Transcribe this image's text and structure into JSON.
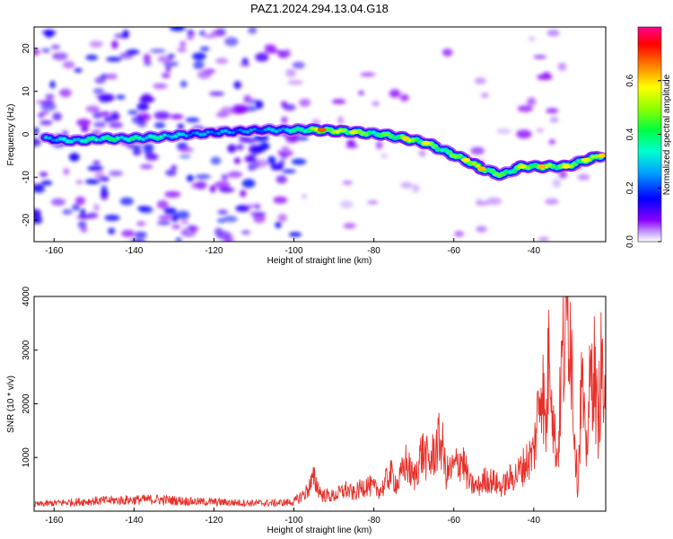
{
  "figure": {
    "title": "PAZ1.2024.294.13.04.G18"
  },
  "chart_data": [
    {
      "type": "heatmap",
      "title": "PAZ1.2024.294.13.04.G18",
      "xlabel": "Height of straight line (km)",
      "ylabel": "Frequency (Hz)",
      "xlim": [
        -165,
        -22
      ],
      "ylim": [
        -25,
        25
      ],
      "x_ticks": [
        -160,
        -140,
        -120,
        -100,
        -80,
        -60,
        -40
      ],
      "y_ticks": [
        -20,
        -10,
        0,
        10,
        20
      ],
      "colorbar": {
        "label": "Normalized spectral amplitude",
        "range": [
          0,
          0.8
        ],
        "ticks": [
          "0.0",
          "0.2",
          "0.4",
          "0.6"
        ],
        "colormap": [
          "#ffffff",
          "#8a00ff",
          "#0000ff",
          "#00c8ff",
          "#00ff90",
          "#60ff00",
          "#ffff00",
          "#ff8000",
          "#ff0000",
          "#ff0090"
        ]
      },
      "ridge": [
        {
          "x": -162,
          "y": -1,
          "amp": 0.32
        },
        {
          "x": -155,
          "y": -1.5,
          "amp": 0.38
        },
        {
          "x": -148,
          "y": -1,
          "amp": 0.45
        },
        {
          "x": -140,
          "y": -1,
          "amp": 0.42
        },
        {
          "x": -132,
          "y": -0.5,
          "amp": 0.4
        },
        {
          "x": -126,
          "y": 0,
          "amp": 0.3
        },
        {
          "x": -118,
          "y": 0.5,
          "amp": 0.3
        },
        {
          "x": -108,
          "y": 1,
          "amp": 0.28
        },
        {
          "x": -100,
          "y": 1,
          "amp": 0.4
        },
        {
          "x": -93,
          "y": 1,
          "amp": 0.68
        },
        {
          "x": -85,
          "y": 0.5,
          "amp": 0.55
        },
        {
          "x": -78,
          "y": 0,
          "amp": 0.5
        },
        {
          "x": -72,
          "y": -1,
          "amp": 0.6
        },
        {
          "x": -67,
          "y": -2,
          "amp": 0.55
        },
        {
          "x": -62,
          "y": -4,
          "amp": 0.5
        },
        {
          "x": -57,
          "y": -6,
          "amp": 0.58
        },
        {
          "x": -53,
          "y": -8,
          "amp": 0.62
        },
        {
          "x": -48,
          "y": -9.5,
          "amp": 0.5
        },
        {
          "x": -43,
          "y": -7.5,
          "amp": 0.55
        },
        {
          "x": -38,
          "y": -7.5,
          "amp": 0.62
        },
        {
          "x": -32,
          "y": -7.5,
          "amp": 0.58
        },
        {
          "x": -27,
          "y": -6,
          "amp": 0.55
        },
        {
          "x": -23,
          "y": -5,
          "amp": 0.6
        }
      ]
    },
    {
      "type": "line",
      "xlabel": "Height of straight line (km)",
      "ylabel": "SNR (10 * v/v)",
      "xlim": [
        -165,
        -22
      ],
      "ylim": [
        0,
        4000
      ],
      "x_ticks": [
        -160,
        -140,
        -120,
        -100,
        -80,
        -60,
        -40
      ],
      "y_ticks": [
        1000,
        2000,
        3000,
        4000
      ],
      "line_color": "#e8302a",
      "series": [
        {
          "x": [
            -165,
            -160,
            -155,
            -150,
            -145,
            -140,
            -135,
            -130,
            -125,
            -120,
            -115,
            -110,
            -105,
            -100,
            -97,
            -95,
            -93,
            -90,
            -87,
            -85,
            -82,
            -80,
            -78,
            -76,
            -74,
            -72,
            -70,
            -68,
            -66,
            -64,
            -63,
            -62,
            -60,
            -58,
            -56,
            -54,
            -52,
            -50,
            -48,
            -46,
            -44,
            -42,
            -40,
            -39,
            -38,
            -37,
            -36,
            -35,
            -34,
            -33,
            -32,
            -31,
            -30,
            -29,
            -28,
            -27,
            -26,
            -25,
            -24,
            -23,
            -22
          ],
          "values": [
            120,
            150,
            170,
            190,
            200,
            210,
            220,
            200,
            180,
            170,
            160,
            150,
            150,
            170,
            350,
            600,
            300,
            280,
            400,
            320,
            500,
            420,
            400,
            700,
            500,
            900,
            600,
            1100,
            900,
            1250,
            1300,
            700,
            800,
            1000,
            500,
            450,
            600,
            550,
            450,
            600,
            700,
            900,
            1100,
            1800,
            2600,
            1400,
            3400,
            1500,
            1000,
            2700,
            3300,
            3950,
            1800,
            400,
            2500,
            1000,
            2200,
            2800,
            1600,
            2800,
            1500
          ]
        }
      ]
    }
  ]
}
